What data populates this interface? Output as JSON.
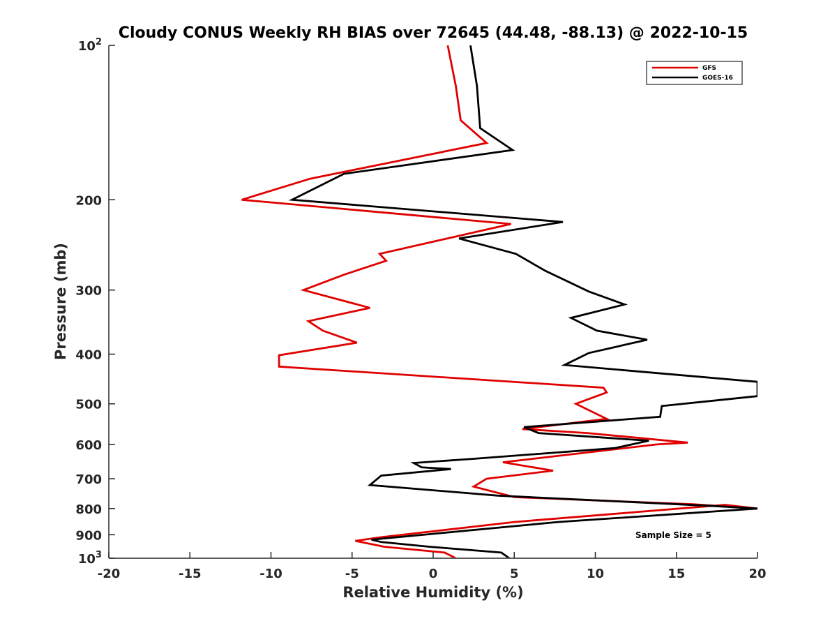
{
  "chart_data": {
    "type": "line",
    "orientation": "vertical-profile",
    "title": "Cloudy CONUS Weekly RH BIAS over 72645 (44.48, -88.13) @ 2022-10-15",
    "xlabel": "Relative Humidity (%)",
    "ylabel": "Pressure (mb)",
    "xlim": [
      -20,
      20
    ],
    "ylim": [
      100,
      1000
    ],
    "yscale": "log",
    "y_reversed": true,
    "xticks": [
      -20,
      -15,
      -10,
      -5,
      0,
      5,
      10,
      15,
      20
    ],
    "xtick_labels": [
      "-20",
      "-15",
      "-10",
      "-5",
      "0",
      "5",
      "10",
      "15",
      "20"
    ],
    "yticks": [
      {
        "value": 100,
        "base": "10",
        "exp": "2"
      },
      {
        "value": 200,
        "label": "200"
      },
      {
        "value": 300,
        "label": "300"
      },
      {
        "value": 400,
        "label": "400"
      },
      {
        "value": 500,
        "label": "500"
      },
      {
        "value": 600,
        "label": "600"
      },
      {
        "value": 700,
        "label": "700"
      },
      {
        "value": 800,
        "label": "800"
      },
      {
        "value": 900,
        "label": "900"
      },
      {
        "value": 1000,
        "base": "10",
        "exp": "3"
      }
    ],
    "grid": false,
    "legend_position": "top-right",
    "annotation": "Sample Size = 5",
    "series": [
      {
        "name": "GFS",
        "color": "#e00000",
        "points": [
          [
            1.4,
            1000
          ],
          [
            0.7,
            975
          ],
          [
            -3.0,
            950
          ],
          [
            -4.8,
            925
          ],
          [
            -3.2,
            910
          ],
          [
            5.0,
            850
          ],
          [
            18.0,
            787
          ],
          [
            20.0,
            800
          ],
          [
            16.0,
            785
          ],
          [
            5.0,
            760
          ],
          [
            2.5,
            725
          ],
          [
            3.3,
            700
          ],
          [
            7.4,
            675
          ],
          [
            4.3,
            650
          ],
          [
            8.0,
            630
          ],
          [
            13.8,
            600
          ],
          [
            15.7,
            595
          ],
          [
            9.5,
            570
          ],
          [
            5.5,
            560
          ],
          [
            10.7,
            535
          ],
          [
            8.8,
            500
          ],
          [
            10.7,
            475
          ],
          [
            10.5,
            465
          ],
          [
            -9.5,
            423
          ],
          [
            -9.5,
            402
          ],
          [
            -4.7,
            380
          ],
          [
            -6.8,
            360
          ],
          [
            -7.7,
            345
          ],
          [
            -3.9,
            325
          ],
          [
            -8.0,
            300
          ],
          [
            -5.5,
            280
          ],
          [
            -2.9,
            263
          ],
          [
            -3.3,
            255
          ],
          [
            4.8,
            223
          ],
          [
            -11.8,
            200
          ],
          [
            -7.6,
            182
          ],
          [
            3.3,
            155
          ],
          [
            1.7,
            140
          ],
          [
            1.4,
            120
          ],
          [
            0.9,
            100
          ]
        ]
      },
      {
        "name": "GOES-16",
        "color": "#000000",
        "points": [
          [
            4.7,
            1000
          ],
          [
            4.2,
            975
          ],
          [
            -0.2,
            950
          ],
          [
            -3.2,
            930
          ],
          [
            -3.8,
            920
          ],
          [
            7.7,
            850
          ],
          [
            20.0,
            800
          ],
          [
            17.0,
            790
          ],
          [
            4.0,
            755
          ],
          [
            -3.9,
            720
          ],
          [
            -3.2,
            690
          ],
          [
            1.1,
            670
          ],
          [
            -0.7,
            665
          ],
          [
            -1.2,
            652
          ],
          [
            2.5,
            640
          ],
          [
            11.2,
            610
          ],
          [
            13.3,
            590
          ],
          [
            6.5,
            570
          ],
          [
            5.6,
            555
          ],
          [
            14.0,
            530
          ],
          [
            14.1,
            505
          ],
          [
            20.0,
            483
          ],
          [
            20.0,
            453
          ],
          [
            8.1,
            420
          ],
          [
            9.6,
            398
          ],
          [
            13.2,
            375
          ],
          [
            10.1,
            360
          ],
          [
            8.5,
            340
          ],
          [
            11.8,
            320
          ],
          [
            9.6,
            302
          ],
          [
            6.9,
            275
          ],
          [
            5.1,
            255
          ],
          [
            1.6,
            238
          ],
          [
            8.0,
            221
          ],
          [
            -8.7,
            200
          ],
          [
            -5.5,
            178
          ],
          [
            4.9,
            160
          ],
          [
            2.9,
            145
          ],
          [
            2.7,
            120
          ],
          [
            2.3,
            100
          ]
        ]
      }
    ]
  }
}
